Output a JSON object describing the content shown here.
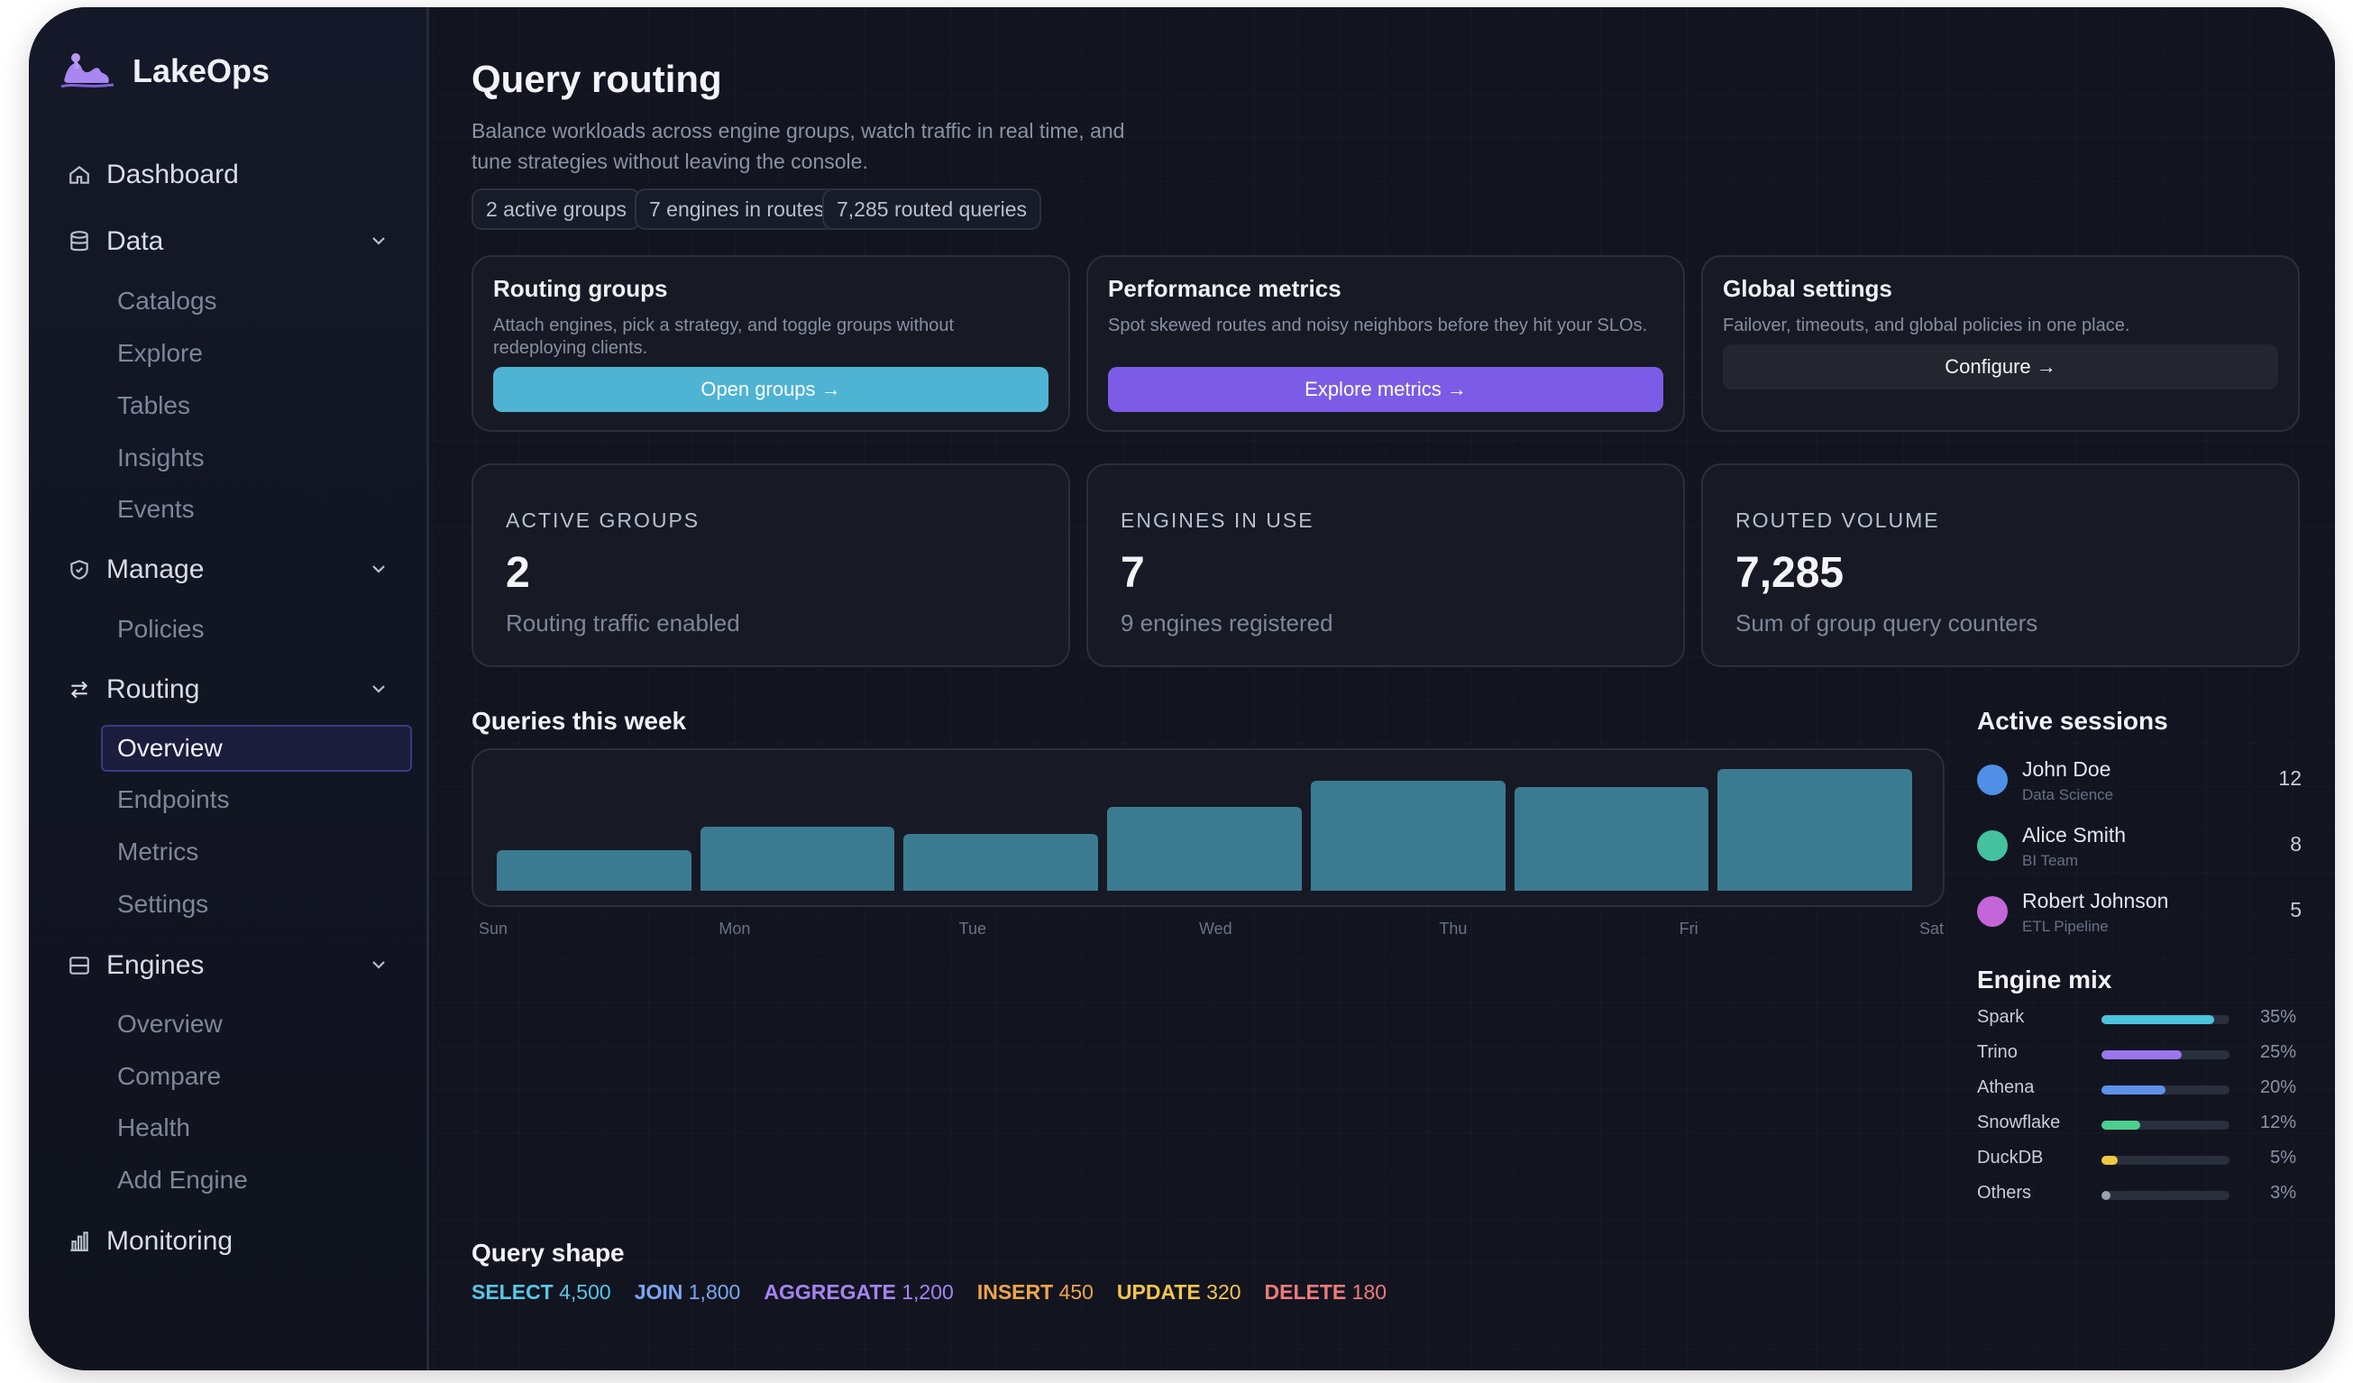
{
  "brand": {
    "name": "LakeOps"
  },
  "sidebar": {
    "dashboard": "Dashboard",
    "data": {
      "label": "Data",
      "items": [
        "Catalogs",
        "Explore",
        "Tables",
        "Insights",
        "Events"
      ]
    },
    "manage": {
      "label": "Manage",
      "items": [
        "Policies"
      ]
    },
    "routing": {
      "label": "Routing",
      "items": [
        "Overview",
        "Endpoints",
        "Metrics",
        "Settings"
      ],
      "active": "Overview"
    },
    "engines": {
      "label": "Engines",
      "items": [
        "Overview",
        "Compare",
        "Health",
        "Add Engine"
      ]
    },
    "monitoring": "Monitoring"
  },
  "page": {
    "title": "Query routing",
    "description": "Balance workloads across engine groups, watch traffic in real time, and tune strategies without leaving the console.",
    "chips": [
      "2 active groups",
      "7 engines in routes",
      "7,285 routed queries"
    ]
  },
  "cards": [
    {
      "title": "Routing groups",
      "desc": "Attach engines, pick a strategy, and toggle groups without redeploying clients.",
      "button": "Open groups →",
      "color": "#4fb3d4"
    },
    {
      "title": "Performance metrics",
      "desc": "Spot skewed routes and noisy neighbors before they hit your SLOs.",
      "button": "Explore metrics →",
      "color": "#7c5ce6"
    },
    {
      "title": "Global settings",
      "desc": "Failover, timeouts, and global policies in one place.",
      "button": "Configure →",
      "color": "#23262f"
    }
  ],
  "stats": [
    {
      "label": "ACTIVE GROUPS",
      "value": "2",
      "sub": "Routing traffic enabled"
    },
    {
      "label": "ENGINES IN USE",
      "value": "7",
      "sub": "9 engines registered"
    },
    {
      "label": "ROUTED VOLUME",
      "value": "7,285",
      "sub": "Sum of group query counters"
    }
  ],
  "chart_data": {
    "type": "bar",
    "title": "Queries this week",
    "categories": [
      "Sun",
      "Mon",
      "Tue",
      "Wed",
      "Thu",
      "Fri",
      "Sat"
    ],
    "values": [
      640,
      1010,
      900,
      1330,
      1750,
      1640,
      1930
    ],
    "ylim": [
      0,
      2000
    ],
    "color": "#3b7b92",
    "grid": false
  },
  "sessions": {
    "title": "Active sessions",
    "items": [
      {
        "name": "John Doe",
        "team": "Data Science",
        "count": "12",
        "color": "#4f8fe8"
      },
      {
        "name": "Alice Smith",
        "team": "BI Team",
        "count": "8",
        "color": "#44c2a0"
      },
      {
        "name": "Robert Johnson",
        "team": "ETL Pipeline",
        "count": "5",
        "color": "#c266d8"
      }
    ]
  },
  "engine_mix": {
    "title": "Engine mix",
    "items": [
      {
        "name": "Spark",
        "pct": "35%",
        "value": 0.88,
        "color": "#4cc3df"
      },
      {
        "name": "Trino",
        "pct": "25%",
        "value": 0.63,
        "color": "#9a76ee"
      },
      {
        "name": "Athena",
        "pct": "20%",
        "value": 0.5,
        "color": "#5e91ea"
      },
      {
        "name": "Snowflake",
        "pct": "12%",
        "value": 0.3,
        "color": "#4ccf8f"
      },
      {
        "name": "DuckDB",
        "pct": "5%",
        "value": 0.13,
        "color": "#f0c93e"
      },
      {
        "name": "Others",
        "pct": "3%",
        "value": 0.07,
        "color": "#9aa0ad"
      }
    ]
  },
  "query_shape": {
    "title": "Query shape",
    "items": [
      {
        "key": "SELECT",
        "value": "4,500",
        "color": "#58c6e6"
      },
      {
        "key": "JOIN",
        "value": "1,800",
        "color": "#7aa6f2"
      },
      {
        "key": "AGGREGATE",
        "value": "1,200",
        "color": "#a684f2"
      },
      {
        "key": "INSERT",
        "value": "450",
        "color": "#f0a54a"
      },
      {
        "key": "UPDATE",
        "value": "320",
        "color": "#f3c54d"
      },
      {
        "key": "DELETE",
        "value": "180",
        "color": "#f07a7a"
      }
    ]
  }
}
